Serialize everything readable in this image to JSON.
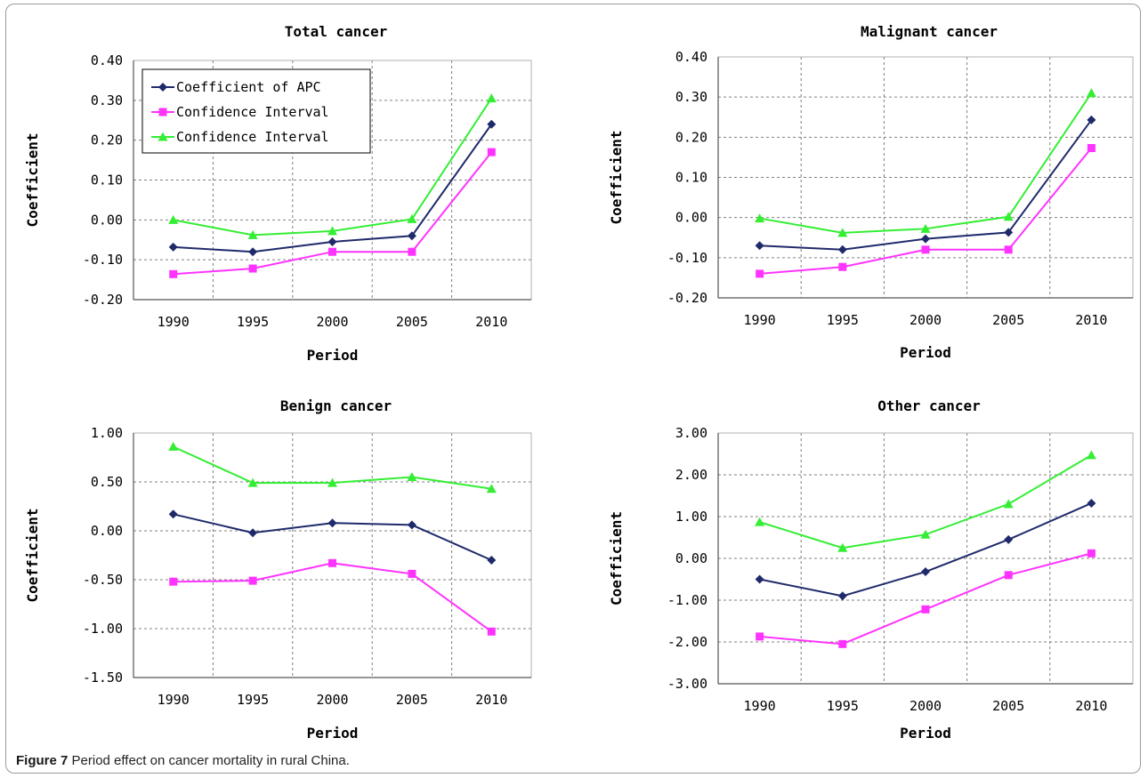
{
  "caption": {
    "label": "Figure 7",
    "text": " Period effect on cancer mortality in rural China."
  },
  "colors": {
    "apc": "#1f2a6b",
    "ci_lower": "#ff33ff",
    "ci_upper": "#33ee33",
    "grid": "#808080",
    "axis": "#555555"
  },
  "chart_data": [
    {
      "type": "line",
      "title": "Total cancer",
      "xlabel": "Period",
      "ylabel": "Coefficient",
      "categories": [
        "1990",
        "1995",
        "2000",
        "2005",
        "2010"
      ],
      "ylim": [
        -0.2,
        0.4
      ],
      "yticks": [
        "0.40",
        "0.30",
        "0.20",
        "0.10",
        "0.00",
        "-0.10",
        "-0.20"
      ],
      "grid": true,
      "legend": {
        "placement": "top-left",
        "entries": [
          "Coefficient of APC",
          "Confidence Interval",
          "Confidence Interval"
        ]
      },
      "series": [
        {
          "name": "Coefficient of APC",
          "marker": "diamond",
          "values": [
            -0.068,
            -0.08,
            -0.055,
            -0.04,
            0.24
          ]
        },
        {
          "name": "Confidence Interval",
          "marker": "square",
          "values": [
            -0.136,
            -0.122,
            -0.08,
            -0.08,
            0.17
          ]
        },
        {
          "name": "Confidence Interval",
          "marker": "triangle",
          "values": [
            0.0,
            -0.038,
            -0.028,
            0.002,
            0.305
          ]
        }
      ]
    },
    {
      "type": "line",
      "title": "Malignant cancer",
      "xlabel": "Period",
      "ylabel": "Coefficient",
      "categories": [
        "1990",
        "1995",
        "2000",
        "2005",
        "2010"
      ],
      "ylim": [
        -0.2,
        0.4
      ],
      "yticks": [
        "0.40",
        "0.30",
        "0.20",
        "0.10",
        "0.00",
        "-0.10",
        "-0.20"
      ],
      "grid": true,
      "series": [
        {
          "values": [
            -0.07,
            -0.08,
            -0.053,
            -0.037,
            0.243
          ]
        },
        {
          "values": [
            -0.14,
            -0.123,
            -0.08,
            -0.08,
            0.173
          ]
        },
        {
          "values": [
            -0.002,
            -0.038,
            -0.028,
            0.002,
            0.31
          ]
        }
      ]
    },
    {
      "type": "line",
      "title": "Benign cancer",
      "xlabel": "Period",
      "ylabel": "Coefficient",
      "categories": [
        "1990",
        "1995",
        "2000",
        "2005",
        "2010"
      ],
      "ylim": [
        -1.5,
        1.0
      ],
      "yticks": [
        "1.00",
        "0.50",
        "0.00",
        "-0.50",
        "-1.00",
        "-1.50"
      ],
      "grid": true,
      "series": [
        {
          "values": [
            0.17,
            -0.02,
            0.08,
            0.06,
            -0.3
          ]
        },
        {
          "values": [
            -0.52,
            -0.51,
            -0.33,
            -0.44,
            -1.03
          ]
        },
        {
          "values": [
            0.86,
            0.49,
            0.49,
            0.55,
            0.43
          ]
        }
      ]
    },
    {
      "type": "line",
      "title": "Other cancer",
      "xlabel": "Period",
      "ylabel": "Coefficient",
      "categories": [
        "1990",
        "1995",
        "2000",
        "2005",
        "2010"
      ],
      "ylim": [
        -3.0,
        3.0
      ],
      "yticks": [
        "3.00",
        "2.00",
        "1.00",
        "0.00",
        "-1.00",
        "-2.00",
        "-3.00"
      ],
      "grid": true,
      "series": [
        {
          "values": [
            -0.5,
            -0.9,
            -0.32,
            0.45,
            1.32
          ]
        },
        {
          "values": [
            -1.87,
            -2.05,
            -1.22,
            -0.4,
            0.12
          ]
        },
        {
          "values": [
            0.87,
            0.25,
            0.57,
            1.3,
            2.47
          ]
        }
      ]
    }
  ]
}
